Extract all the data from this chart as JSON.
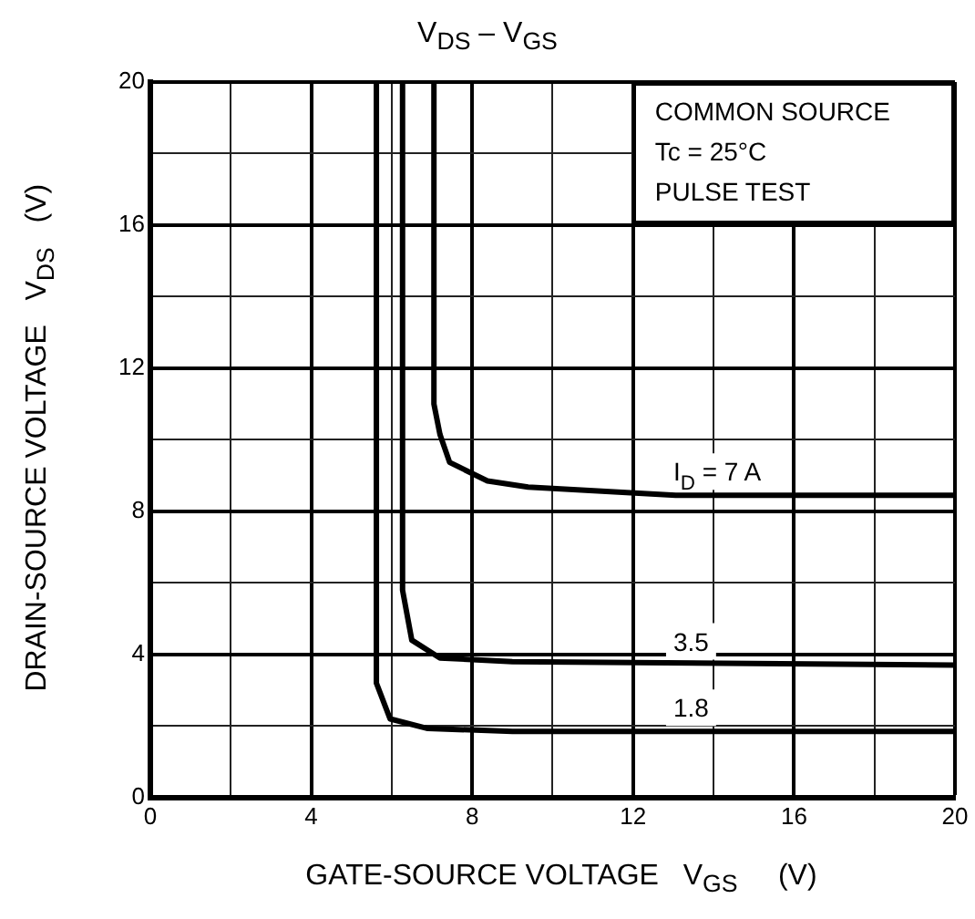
{
  "chart_data": {
    "type": "line",
    "title": "V$_{DS}$ – V$_{GS}$",
    "xlabel": "GATE-SOURCE VOLTAGE   V$_{GS}$     (V)",
    "ylabel": "DRAIN-SOURCE VOLTAGE   V$_{DS}$   (V)",
    "annotations": [
      "COMMON SOURCE",
      "Tc = 25°C",
      "PULSE TEST"
    ],
    "series": [
      {
        "name": "I$_{D}$ = 7 A",
        "color": "#000000",
        "x": [
          7.05,
          7.05,
          7.2,
          7.44,
          8.38,
          9.39,
          13.06,
          20
        ],
        "values": [
          20,
          11.0,
          10.15,
          9.37,
          8.85,
          8.68,
          8.45,
          8.45
        ]
      },
      {
        "name": "3.5",
        "color": "#000000",
        "x": [
          6.27,
          6.27,
          6.5,
          7.2,
          9.0,
          20
        ],
        "values": [
          20,
          5.8,
          4.4,
          3.9,
          3.8,
          3.7
        ]
      },
      {
        "name": "1.8",
        "color": "#000000",
        "x": [
          5.62,
          5.62,
          5.96,
          6.9,
          9.0,
          20
        ],
        "values": [
          20,
          3.2,
          2.2,
          1.93,
          1.85,
          1.85
        ]
      }
    ],
    "xlim": [
      0,
      20
    ],
    "ylim": [
      0,
      20
    ],
    "xticks": [
      0,
      {
        "value": 2,
        "label": null
      },
      4,
      {
        "value": 6,
        "label": null
      },
      8,
      {
        "value": 10,
        "label": null
      },
      12,
      {
        "value": 14,
        "label": null
      },
      16,
      {
        "value": 18,
        "label": null
      },
      20
    ],
    "yticks": [
      0,
      {
        "value": 2,
        "label": null
      },
      4,
      {
        "value": 6,
        "label": null
      },
      8,
      {
        "value": 10,
        "label": null
      },
      12,
      {
        "value": 14,
        "label": null
      },
      16,
      {
        "value": 18,
        "label": null
      },
      20
    ],
    "grid": true,
    "legend": false,
    "marker": "none",
    "line_style": "solid"
  }
}
